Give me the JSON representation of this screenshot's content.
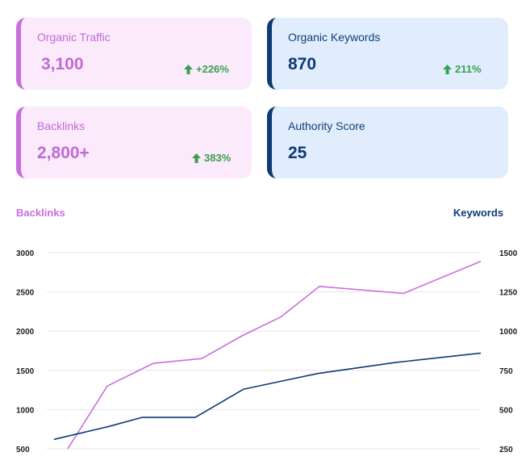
{
  "cards": [
    {
      "label": "Organic Traffic",
      "value": "3,100",
      "delta": "+226%"
    },
    {
      "label": "Organic Keywords",
      "value": "870",
      "delta": "211%"
    },
    {
      "label": "Backlinks",
      "value": "2,800+",
      "delta": "383%"
    },
    {
      "label": "Authority Score",
      "value": "25"
    }
  ],
  "colors": {
    "backlinks": "#c86fdc",
    "keywords": "#0e3a73",
    "positive": "#3aa04c"
  },
  "icons": {
    "delta": "arrow-up-icon"
  },
  "chart_data": {
    "type": "line",
    "title": "",
    "x_labels_shown": false,
    "y_left": {
      "label": "Backlinks",
      "ticks": [
        "3000",
        "2500",
        "2000",
        "1500",
        "1000",
        "500"
      ],
      "range": [
        500,
        3000
      ]
    },
    "y_right": {
      "label": "Keywords",
      "ticks": [
        "1500",
        "1250",
        "1000",
        "750",
        "500",
        "250"
      ],
      "range": [
        250,
        1500
      ]
    },
    "grid": true,
    "series": [
      {
        "name": "Backlinks",
        "axis": "left",
        "color": "#c86fdc",
        "values": [
          500,
          1300,
          1590,
          1650,
          1940,
          2180,
          2570,
          2480,
          2890
        ]
      },
      {
        "name": "Keywords",
        "axis": "right",
        "color": "#0e3a73",
        "values": [
          310,
          390,
          450,
          450,
          630,
          680,
          730,
          800,
          860
        ]
      }
    ]
  }
}
